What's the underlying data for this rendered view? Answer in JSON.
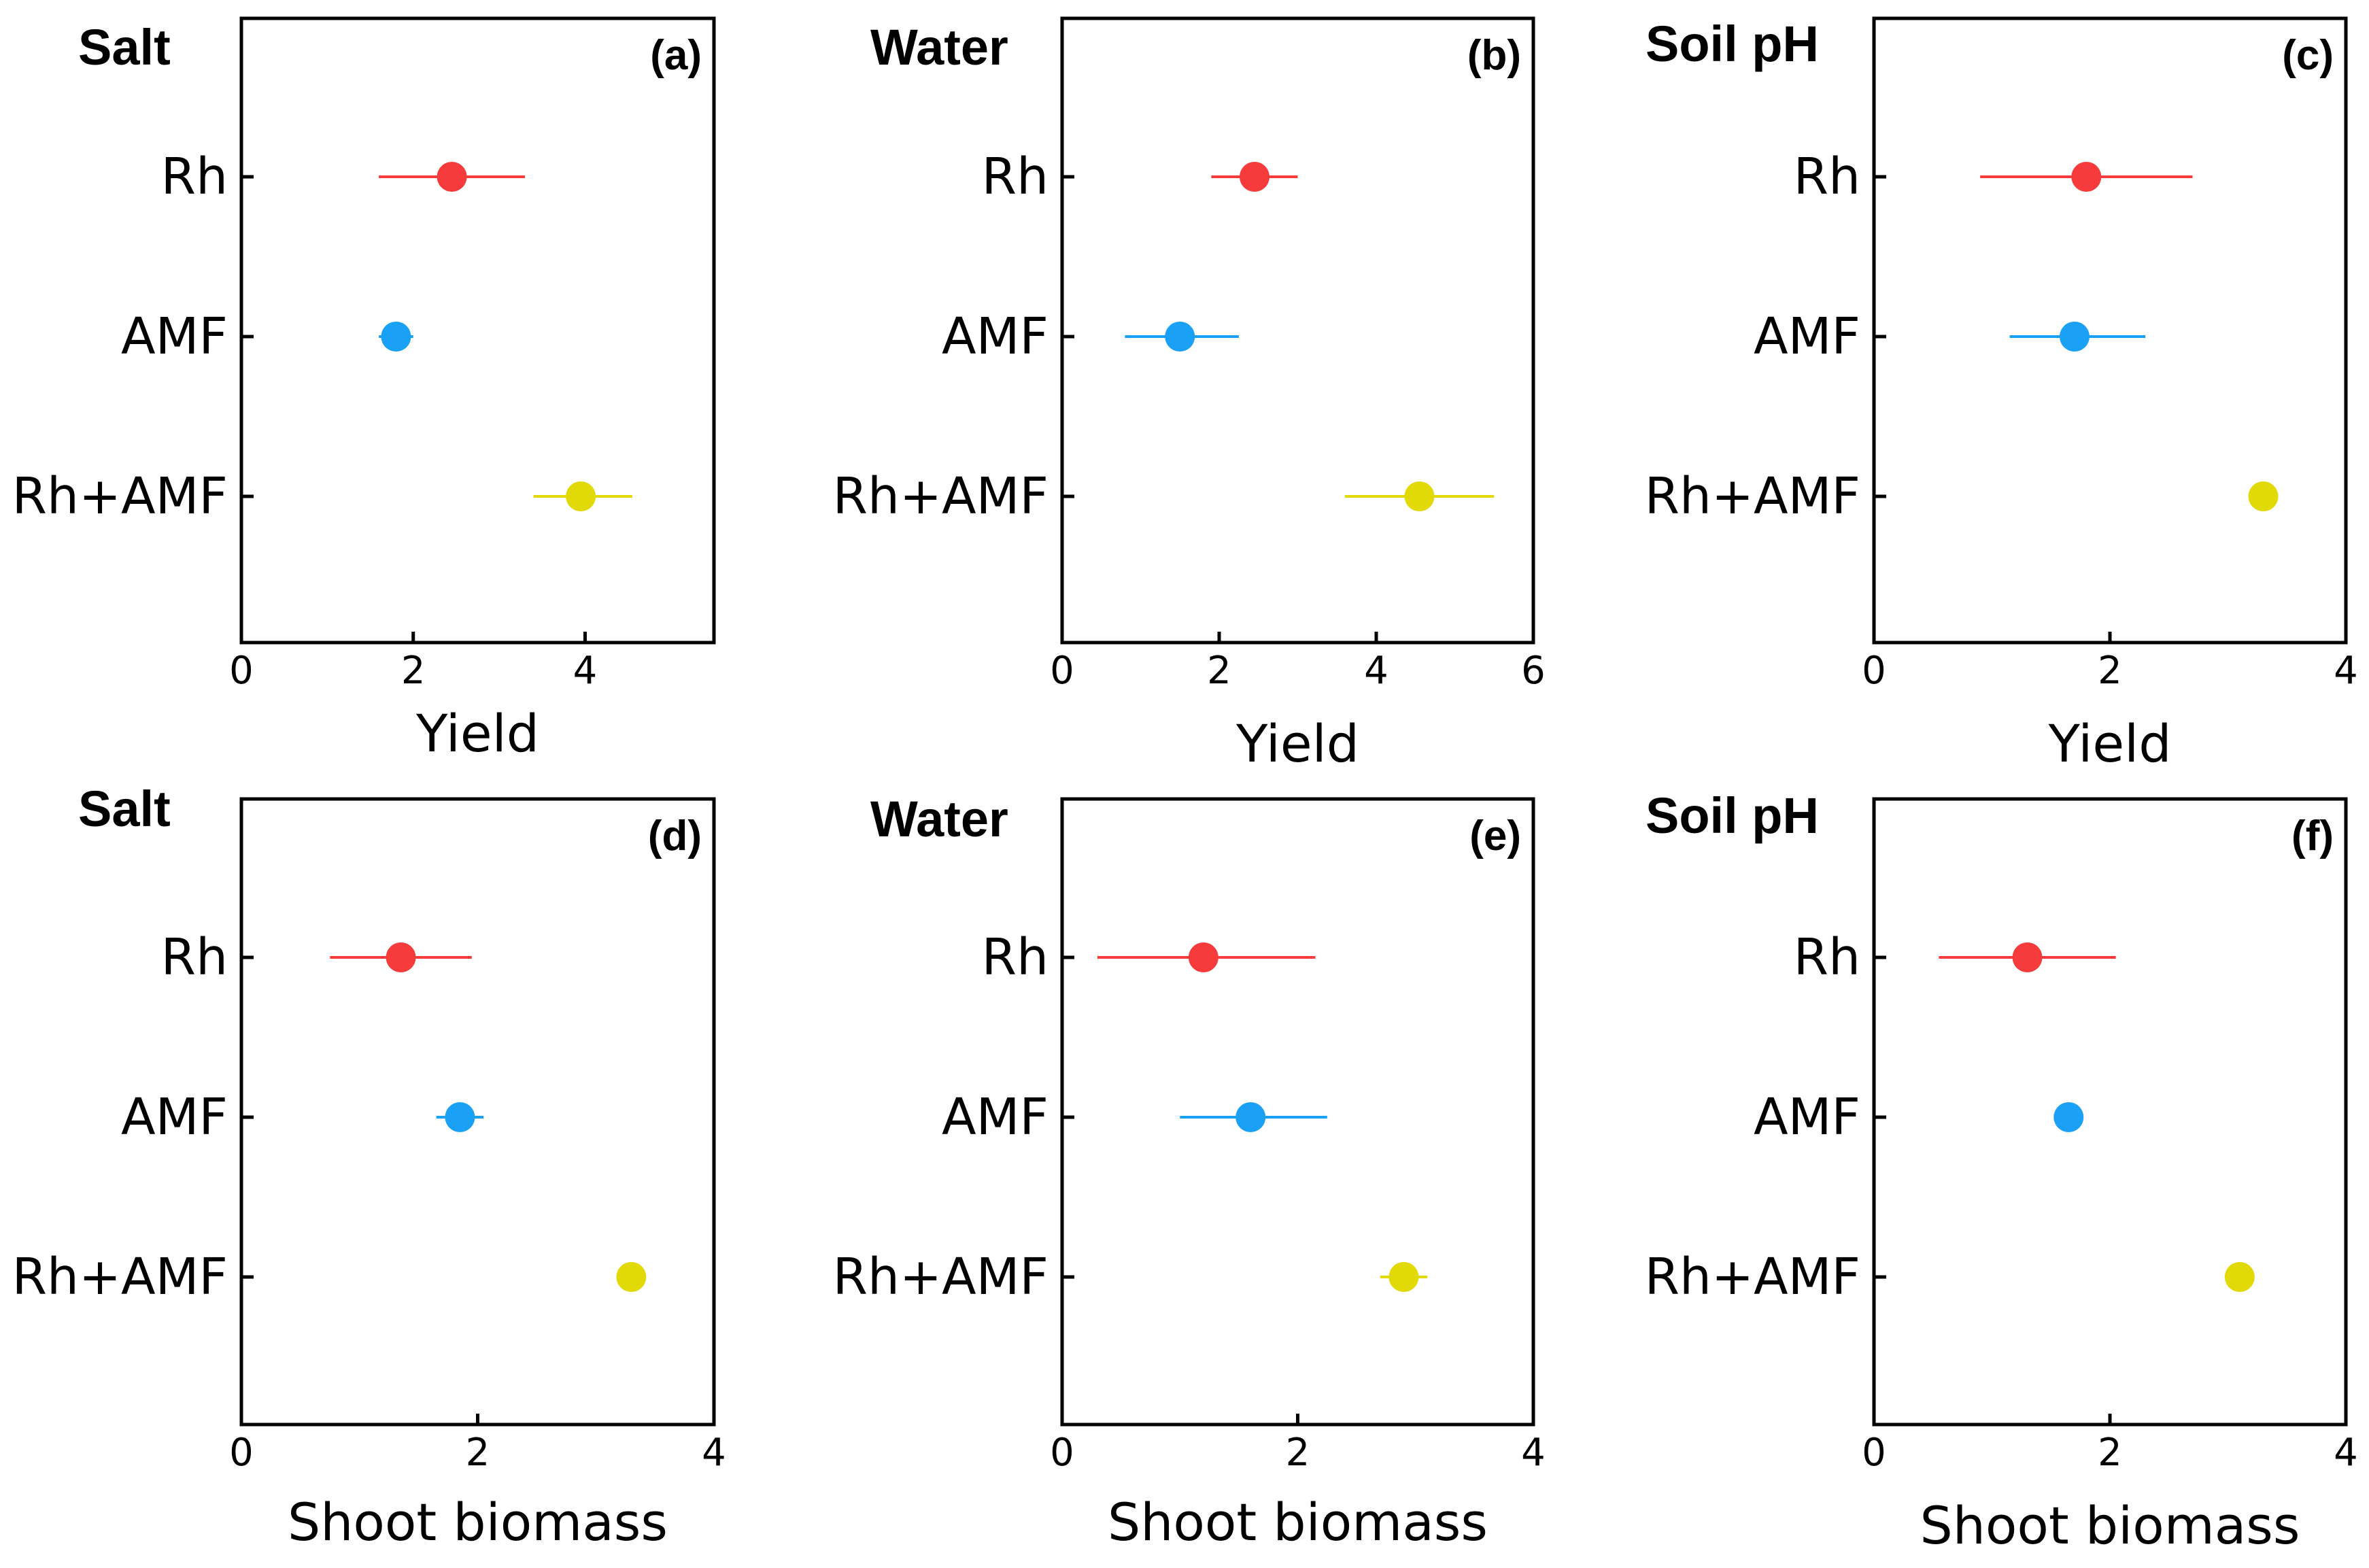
{
  "colors": {
    "Rh": "#f53b3b",
    "AMF": "#1aa1f5",
    "Rh+AMF": "#e2d909",
    "axis": "#000000"
  },
  "chart_data": [
    {
      "type": "scatter",
      "id": "a",
      "title": "Salt",
      "tag": "(a)",
      "xlabel": "Yield",
      "xlim": [
        0,
        5.5
      ],
      "xticks": [
        0,
        2,
        4
      ],
      "categories": [
        "Rh",
        "AMF",
        "Rh+AMF"
      ],
      "points": [
        {
          "category": "Rh",
          "mean": 2.45,
          "lower": 1.6,
          "upper": 3.3
        },
        {
          "category": "AMF",
          "mean": 1.8,
          "lower": 1.6,
          "upper": 2.0
        },
        {
          "category": "Rh+AMF",
          "mean": 3.95,
          "lower": 3.4,
          "upper": 4.55
        }
      ]
    },
    {
      "type": "scatter",
      "id": "b",
      "title": "Water",
      "tag": "(b)",
      "xlabel": "Yield",
      "xlim": [
        0,
        6
      ],
      "xticks": [
        0,
        2,
        4,
        6
      ],
      "categories": [
        "Rh",
        "AMF",
        "Rh+AMF"
      ],
      "points": [
        {
          "category": "Rh",
          "mean": 2.45,
          "lower": 1.9,
          "upper": 3.0
        },
        {
          "category": "AMF",
          "mean": 1.5,
          "lower": 0.8,
          "upper": 2.25
        },
        {
          "category": "Rh+AMF",
          "mean": 4.55,
          "lower": 3.6,
          "upper": 5.5
        }
      ]
    },
    {
      "type": "scatter",
      "id": "c",
      "title": "Soil pH",
      "tag": "(c)",
      "xlabel": "Yield",
      "xlim": [
        0,
        4
      ],
      "xticks": [
        0,
        2,
        4
      ],
      "categories": [
        "Rh",
        "AMF",
        "Rh+AMF"
      ],
      "points": [
        {
          "category": "Rh",
          "mean": 1.8,
          "lower": 0.9,
          "upper": 2.7
        },
        {
          "category": "AMF",
          "mean": 1.7,
          "lower": 1.15,
          "upper": 2.3
        },
        {
          "category": "Rh+AMF",
          "mean": 3.3,
          "lower": 3.3,
          "upper": 3.3
        }
      ]
    },
    {
      "type": "scatter",
      "id": "d",
      "title": "Salt",
      "tag": "(d)",
      "xlabel": "Shoot biomass",
      "xlim": [
        0,
        4
      ],
      "xticks": [
        0,
        2,
        4
      ],
      "categories": [
        "Rh",
        "AMF",
        "Rh+AMF"
      ],
      "points": [
        {
          "category": "Rh",
          "mean": 1.35,
          "lower": 0.75,
          "upper": 1.95
        },
        {
          "category": "AMF",
          "mean": 1.85,
          "lower": 1.65,
          "upper": 2.05
        },
        {
          "category": "Rh+AMF",
          "mean": 3.3,
          "lower": 3.3,
          "upper": 3.3
        }
      ]
    },
    {
      "type": "scatter",
      "id": "e",
      "title": "Water",
      "tag": "(e)",
      "xlabel": "Shoot biomass",
      "xlim": [
        0,
        4
      ],
      "xticks": [
        0,
        2,
        4
      ],
      "categories": [
        "Rh",
        "AMF",
        "Rh+AMF"
      ],
      "points": [
        {
          "category": "Rh",
          "mean": 1.2,
          "lower": 0.3,
          "upper": 2.15
        },
        {
          "category": "AMF",
          "mean": 1.6,
          "lower": 1.0,
          "upper": 2.25
        },
        {
          "category": "Rh+AMF",
          "mean": 2.9,
          "lower": 2.7,
          "upper": 3.1
        }
      ]
    },
    {
      "type": "scatter",
      "id": "f",
      "title": "Soil pH",
      "tag": "(f)",
      "xlabel": "Shoot biomass",
      "xlim": [
        0,
        4
      ],
      "xticks": [
        0,
        2,
        4
      ],
      "categories": [
        "Rh",
        "AMF",
        "Rh+AMF"
      ],
      "points": [
        {
          "category": "Rh",
          "mean": 1.3,
          "lower": 0.55,
          "upper": 2.05
        },
        {
          "category": "AMF",
          "mean": 1.65,
          "lower": 1.65,
          "upper": 1.65
        },
        {
          "category": "Rh+AMF",
          "mean": 3.1,
          "lower": 3.1,
          "upper": 3.1
        }
      ]
    }
  ]
}
